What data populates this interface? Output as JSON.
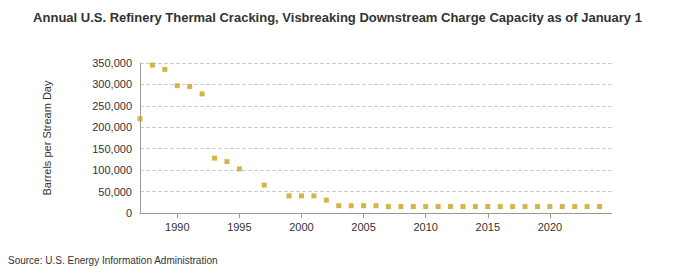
{
  "chart_data": {
    "type": "scatter",
    "title": "Annual U.S. Refinery Thermal Cracking, Visbreaking Downstream Charge Capacity as of January 1",
    "y_label": "Barrels per Stream Day",
    "source": "Source: U.S. Energy Information Administration",
    "x": [
      1987,
      1988,
      1989,
      1990,
      1991,
      1992,
      1993,
      1994,
      1995,
      1997,
      1999,
      2000,
      2001,
      2002,
      2003,
      2004,
      2005,
      2006,
      2007,
      2008,
      2009,
      2010,
      2011,
      2012,
      2013,
      2014,
      2015,
      2016,
      2017,
      2018,
      2019,
      2020,
      2021,
      2022,
      2023,
      2024
    ],
    "values": [
      220000,
      345000,
      335000,
      297000,
      295000,
      278000,
      128000,
      120000,
      103000,
      65000,
      40000,
      40000,
      40000,
      30000,
      17000,
      17000,
      17000,
      17000,
      15000,
      15000,
      15000,
      15000,
      15000,
      15000,
      15000,
      15000,
      15000,
      15000,
      15000,
      15000,
      15000,
      15000,
      15000,
      15000,
      15000,
      15000
    ],
    "color": "#c8a21e",
    "marker": "square",
    "xlim": [
      1987,
      2025
    ],
    "xticks": [
      1990,
      1995,
      2000,
      2005,
      2010,
      2015,
      2020
    ],
    "ylim": [
      0,
      350000
    ],
    "yticks": [
      0,
      {
        "value": 50000,
        "label": "50,000"
      },
      {
        "value": 100000,
        "label": "100,000"
      },
      {
        "value": 150000,
        "label": "150,000"
      },
      {
        "value": 200000,
        "label": "200,000"
      },
      {
        "value": 250000,
        "label": "250,000"
      },
      {
        "value": 300000,
        "label": "300,000"
      },
      {
        "value": 350000,
        "label": "350,000"
      }
    ],
    "grid": true
  }
}
